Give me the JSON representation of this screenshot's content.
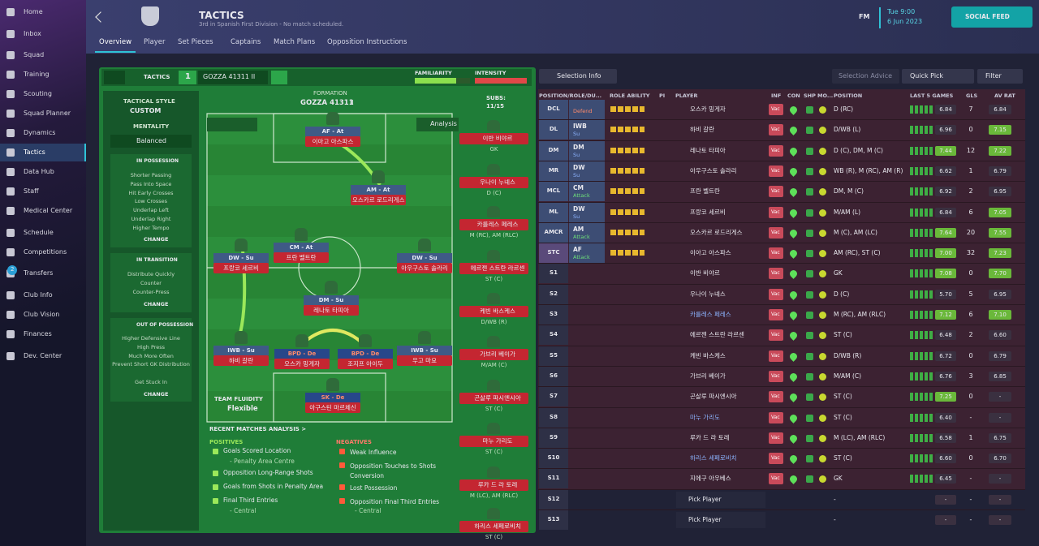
{
  "sidebar": {
    "items": [
      "Home",
      "Inbox",
      "Squad",
      "Training",
      "Scouting",
      "Squad Planner",
      "Dynamics",
      "Tactics",
      "Data Hub",
      "Staff",
      "Medical Center",
      "Schedule",
      "Competitions",
      "Transfers",
      "Club Info",
      "Club Vision",
      "Finances",
      "Dev. Center"
    ],
    "badge": "2"
  },
  "header": {
    "title": "TACTICS",
    "subtitle": "3rd in Spanish First Division - No match scheduled.",
    "brand": "FM",
    "time": "Tue 9:00",
    "date": "6 Jun 2023",
    "social": "SOCIAL FEED"
  },
  "tabs": [
    "Overview",
    "Player",
    "Set Pieces",
    "Captains",
    "Match Plans",
    "Opposition Instructions"
  ],
  "tactic_bar": {
    "label": "TACTICS",
    "slot": "1",
    "name": "GOZZA 41311 II",
    "familiarity": "FAMILIARITY",
    "intensity": "INTENSITY"
  },
  "style_panel": {
    "style_label": "TACTICAL STYLE",
    "style": "CUSTOM",
    "mentality_label": "MENTALITY",
    "mentality": "Balanced",
    "in_possession": {
      "title": "IN POSSESSION",
      "items": [
        "Shorter Passing",
        "Pass Into Space",
        "Hit Early Crosses",
        "Low Crosses",
        "Underlap Left",
        "Underlap Right",
        "Higher Tempo"
      ],
      "change": "CHANGE"
    },
    "in_transition": {
      "title": "IN TRANSITION",
      "items": [
        "Distribute Quickly",
        "Counter",
        "Counter-Press"
      ],
      "change": "CHANGE"
    },
    "out_of_possession": {
      "title": "OUT OF POSSESSION",
      "items": [
        "Higher Defensive Line",
        "High Press",
        "Much More Often",
        "Prevent Short GK Distribution",
        "Get Stuck In"
      ],
      "change": "CHANGE"
    },
    "fluidity_label": "TEAM FLUIDITY",
    "fluidity": "Flexible"
  },
  "pitch": {
    "formation_label": "FORMATION",
    "formation": "GOZZA 41311",
    "variant": "II",
    "subs_label": "SUBS:",
    "subs_count": "11/15",
    "analysis": "Analysis",
    "players": [
      {
        "role": "AF - At",
        "name": "이아고 아스파스"
      },
      {
        "role": "AM - At",
        "name": "오스카르 로드리게스"
      },
      {
        "role": "CM - At",
        "name": "프란 벨트란"
      },
      {
        "role": "DW - Su",
        "name": "프랑코 세르비"
      },
      {
        "role": "DW - Su",
        "name": "아우구스토 솔라리"
      },
      {
        "role": "DM - Su",
        "name": "레나토 타피아"
      },
      {
        "role": "IWB - Su",
        "name": "하비 갈란"
      },
      {
        "role": "BPD - De",
        "name": "오스카 밍게자"
      },
      {
        "role": "BPD - De",
        "name": "조지프 아이두"
      },
      {
        "role": "IWB - Su",
        "name": "우고 마요"
      },
      {
        "role": "SK - De",
        "name": "아구스틴 마르체신"
      }
    ]
  },
  "subs": [
    {
      "name": "이반 비야르",
      "position": "GK"
    },
    {
      "name": "우나이 누녜스",
      "position": "D (C)"
    },
    {
      "name": "카를레스 페레스",
      "position": "M (RC), AM (RLC)"
    },
    {
      "name": "에르젠 스트란 라르센",
      "position": "ST (C)"
    },
    {
      "name": "케빈 바스케스",
      "position": "D/WB (R)"
    },
    {
      "name": "가브리 베이가",
      "position": "M/AM (C)"
    },
    {
      "name": "곤살루 파시엔시아",
      "position": "ST (C)"
    },
    {
      "name": "마누 가리도",
      "position": "ST (C)"
    },
    {
      "name": "루카 드 라 토레",
      "position": "M (LC), AM (RLC)"
    },
    {
      "name": "하리스 세페로비치",
      "position": "ST (C)"
    }
  ],
  "analysis": {
    "title": "RECENT MATCHES ANALYSIS >",
    "positives_label": "POSITIVES",
    "negatives_label": "NEGATIVES",
    "positives": [
      {
        "text": "Goals Scored Location",
        "sub": "- Penalty Area Centre"
      },
      {
        "text": "Opposition Long-Range Shots"
      },
      {
        "text": "Goals from Shots in Penalty Area"
      },
      {
        "text": "Final Third Entries",
        "sub": "- Central"
      }
    ],
    "negatives": [
      {
        "text": "Weak Influence"
      },
      {
        "text": "Opposition Touches to Shots Conversion"
      },
      {
        "text": "Lost Possession"
      },
      {
        "text": "Opposition Final Third Entries",
        "sub": "- Central"
      }
    ]
  },
  "selection": {
    "buttons": [
      "Selection Info",
      "Selection Advice",
      "Quick Pick",
      "Filter"
    ],
    "columns": [
      "POSITION/ROLE/DU...",
      "ROLE ABILITY",
      "PI",
      "PLAYER",
      "INF",
      "CON",
      "SHP",
      "MO...",
      "POSITION",
      "LAST 5 GAMES",
      "GLS",
      "AV RAT"
    ],
    "rows": [
      {
        "pos": "DCL",
        "duty": "Defend",
        "name": "오스카 밍게자",
        "inf": "Vac",
        "position": "D (RC)",
        "form": "6.84",
        "gls": "7",
        "avrat": "6.84"
      },
      {
        "pos": "DL",
        "role": "IWB",
        "duty": "Su",
        "name": "하비 갈란",
        "inf": "Vac",
        "position": "D/WB (L)",
        "form": "6.96",
        "gls": "0",
        "avrat": "7.15"
      },
      {
        "pos": "DM",
        "role": "DM",
        "duty": "Su",
        "name": "레나토 타피아",
        "inf": "Vac",
        "position": "D (C), DM, M (C)",
        "form": "7.44",
        "gls": "12",
        "avrat": "7.22"
      },
      {
        "pos": "MR",
        "role": "DW",
        "duty": "Su",
        "name": "아우구스토 솔라리",
        "inf": "Vac",
        "position": "WB (R), M (RC), AM (R)",
        "form": "6.62",
        "gls": "1",
        "avrat": "6.79"
      },
      {
        "pos": "MCL",
        "role": "CM",
        "duty": "Attack",
        "name": "프란 벨트란",
        "inf": "Vac",
        "position": "DM, M (C)",
        "form": "6.92",
        "gls": "2",
        "avrat": "6.95"
      },
      {
        "pos": "ML",
        "role": "DW",
        "duty": "Su",
        "name": "프랑코 세르비",
        "inf": "Vac",
        "position": "M/AM (L)",
        "form": "6.84",
        "gls": "6",
        "avrat": "7.05"
      },
      {
        "pos": "AMCR",
        "role": "AM",
        "duty": "Attack",
        "name": "오스카르 로드리게스",
        "inf": "Vac",
        "position": "M (C), AM (LC)",
        "form": "7.64",
        "gls": "20",
        "avrat": "7.55"
      },
      {
        "pos": "STC",
        "role": "AF",
        "duty": "Attack",
        "name": "이아고 아스파스",
        "inf": "Vac",
        "position": "AM (RC), ST (C)",
        "form": "7.00",
        "gls": "32",
        "avrat": "7.23"
      },
      {
        "pos": "S1",
        "name": "이반 비야르",
        "inf": "Vac",
        "position": "GK",
        "form": "7.08",
        "gls": "0",
        "avrat": "7.70"
      },
      {
        "pos": "S2",
        "name": "우나이 누녜스",
        "inf": "Vac",
        "position": "D (C)",
        "form": "5.70",
        "gls": "5",
        "avrat": "6.95"
      },
      {
        "pos": "S3",
        "name": "카를레스 페레스",
        "inf": "Vac",
        "position": "M (RC), AM (RLC)",
        "form": "7.12",
        "gls": "6",
        "avrat": "7.10"
      },
      {
        "pos": "S4",
        "name": "에르젠 스트란 라르센",
        "inf": "Vac",
        "position": "ST (C)",
        "form": "6.48",
        "gls": "2",
        "avrat": "6.60"
      },
      {
        "pos": "S5",
        "name": "케빈 바스케스",
        "inf": "Vac",
        "position": "D/WB (R)",
        "form": "6.72",
        "gls": "0",
        "avrat": "6.79"
      },
      {
        "pos": "S6",
        "name": "가브리 베이가",
        "inf": "Vac",
        "position": "M/AM (C)",
        "form": "6.76",
        "gls": "3",
        "avrat": "6.85"
      },
      {
        "pos": "S7",
        "name": "곤살루 파시엔시아",
        "inf": "Vac",
        "position": "ST (C)",
        "form": "7.25",
        "gls": "0",
        "avrat": "-"
      },
      {
        "pos": "S8",
        "name": "마누 가리도",
        "inf": "Vac",
        "position": "ST (C)",
        "form": "6.40",
        "gls": "-",
        "avrat": "-"
      },
      {
        "pos": "S9",
        "name": "루카 드 라 토레",
        "inf": "Vac",
        "position": "M (LC), AM (RLC)",
        "form": "6.58",
        "gls": "1",
        "avrat": "6.75"
      },
      {
        "pos": "S10",
        "name": "하리스 세페로비치",
        "inf": "Vac",
        "position": "ST (C)",
        "form": "6.60",
        "gls": "0",
        "avrat": "6.70"
      },
      {
        "pos": "S11",
        "name": "지에구 아우베스",
        "inf": "Vac",
        "position": "GK",
        "form": "6.45",
        "gls": "-",
        "avrat": "-"
      },
      {
        "pos": "S12",
        "name": "Pick Player",
        "position": "-",
        "form": "-",
        "gls": "-",
        "avrat": "-"
      },
      {
        "pos": "S13",
        "name": "Pick Player",
        "position": "-",
        "form": "-",
        "gls": "-",
        "avrat": "-"
      }
    ]
  }
}
